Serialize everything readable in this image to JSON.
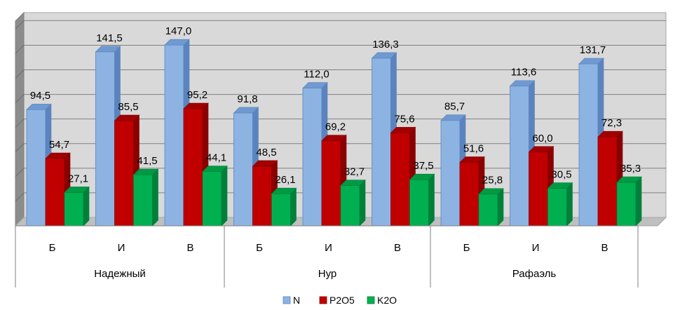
{
  "chart_data": {
    "type": "bar",
    "style": "3d-clustered-column",
    "groups": [
      {
        "name": "Надежный",
        "categories": [
          "Б",
          "И",
          "В"
        ]
      },
      {
        "name": "Нур",
        "categories": [
          "Б",
          "И",
          "В"
        ]
      },
      {
        "name": "Рафаэль",
        "categories": [
          "Б",
          "И",
          "В"
        ]
      }
    ],
    "series": [
      {
        "name": "N",
        "color": "#8DB3E2",
        "side": "#5B84BF",
        "top": "#6F99D0",
        "values": [
          94.5,
          141.5,
          147.0,
          91.8,
          112.0,
          136.3,
          85.7,
          113.6,
          131.7
        ],
        "labels": [
          "94,5",
          "141,5",
          "147,0",
          "91,8",
          "112,0",
          "136,3",
          "85,7",
          "113,6",
          "131,7"
        ]
      },
      {
        "name": "P2O5",
        "color": "#C00000",
        "side": "#8A0000",
        "top": "#A00000",
        "values": [
          54.7,
          85.5,
          95.2,
          48.5,
          69.2,
          75.6,
          51.6,
          60.0,
          72.3
        ],
        "labels": [
          "54,7",
          "85,5",
          "95,2",
          "48,5",
          "69,2",
          "75,6",
          "51,6",
          "60,0",
          "72,3"
        ]
      },
      {
        "name": "K2O",
        "color": "#00B050",
        "side": "#00803A",
        "top": "#009A44",
        "values": [
          27.1,
          41.5,
          44.1,
          26.1,
          32.7,
          37.5,
          25.8,
          30.5,
          35.3
        ],
        "labels": [
          "27,1",
          "41,5",
          "44,1",
          "26,1",
          "32,7",
          "37,5",
          "25,8",
          "30,5",
          "35,3"
        ]
      }
    ],
    "ylim": [
      0,
      160
    ],
    "grid": true,
    "legend_position": "bottom",
    "wall_color": "#D9D9D9"
  }
}
